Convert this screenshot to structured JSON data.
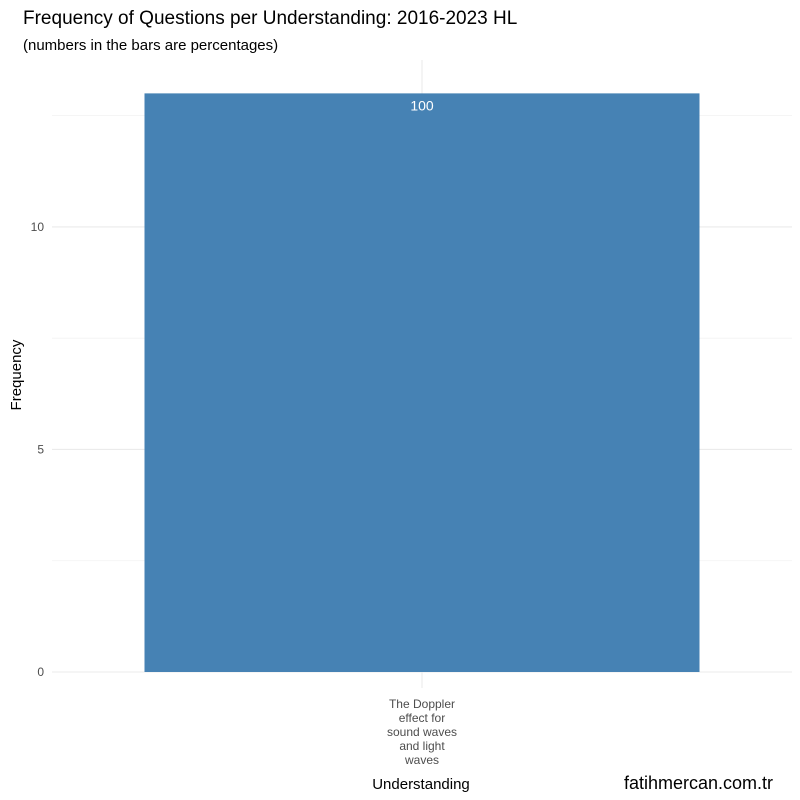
{
  "chart_data": {
    "type": "bar",
    "title": "Frequency of Questions per Understanding: 2016-2023 HL",
    "subtitle": "(numbers in the bars are percentages)",
    "xlabel": "Understanding",
    "ylabel": "Frequency",
    "categories": [
      "The Doppler effect for sound waves and light waves"
    ],
    "category_tick_lines": [
      [
        "The Doppler",
        "effect for",
        "sound waves",
        "and light",
        "waves"
      ]
    ],
    "values": [
      13
    ],
    "bar_labels": [
      "100"
    ],
    "ylim": [
      0,
      13.75
    ],
    "yticks": [
      0,
      5,
      10
    ],
    "grid": true,
    "bar_color": "#4682B4",
    "caption": "fatihmercan.com.tr"
  }
}
